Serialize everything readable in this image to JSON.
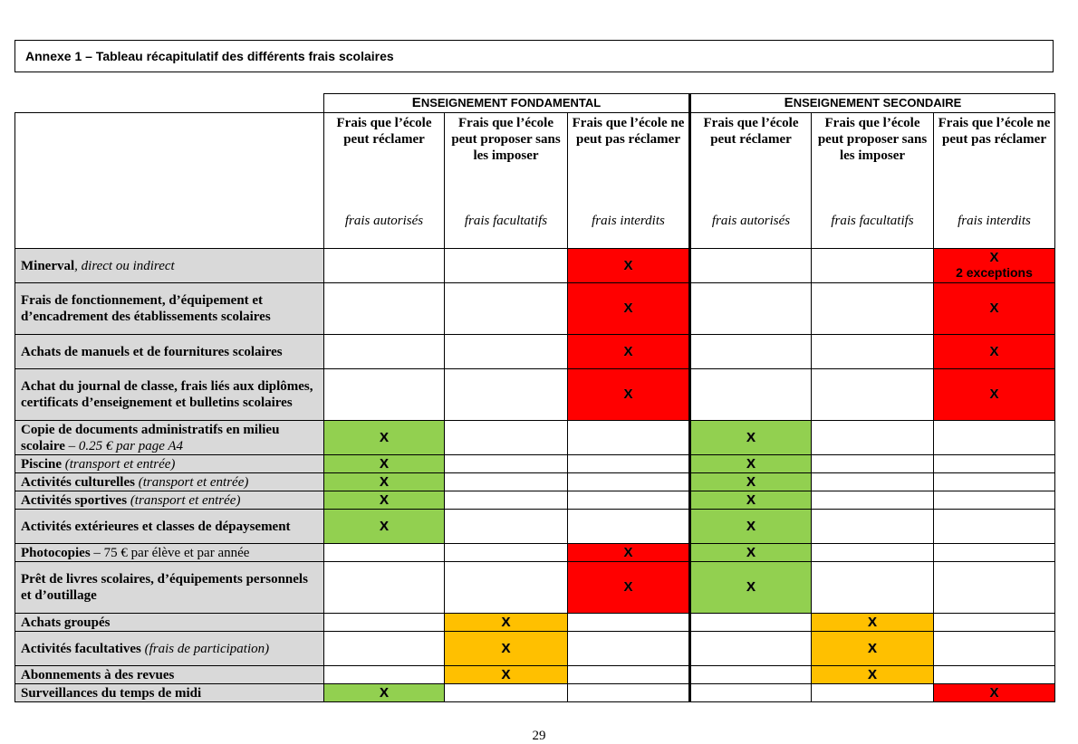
{
  "title": "Annexe 1 – Tableau récapitulatif des différents frais scolaires",
  "groups": {
    "fondamental": {
      "initial": "E",
      "rest": "NSEIGNEMENT FONDAMENTAL"
    },
    "secondaire": {
      "initial": "E",
      "rest": "NSEIGNEMENT SECONDAIRE"
    }
  },
  "column_headers": [
    {
      "heading": "Frais que l’école peut réclamer",
      "subtitle": "frais autorisés"
    },
    {
      "heading": "Frais que l’école peut proposer sans les imposer",
      "subtitle": "frais facultatifs"
    },
    {
      "heading": "Frais que l’école ne peut pas réclamer",
      "subtitle": "frais interdits"
    },
    {
      "heading": "Frais que l’école peut réclamer",
      "subtitle": "frais autorisés"
    },
    {
      "heading": "Frais que l’école peut proposer sans les imposer",
      "subtitle": "frais facultatifs"
    },
    {
      "heading": "Frais que l’école ne peut pas réclamer",
      "subtitle": "frais interdits"
    }
  ],
  "mark": "X",
  "exception_note": "2 exceptions",
  "status_colors": {
    "interdit": "#ff0000",
    "autorise": "#92d050",
    "facultatif": "#ffc000",
    "label_bg": "#d9d9d9"
  },
  "rows": [
    {
      "label_bold": "Minerval",
      "label_rest": ", direct ou indirect",
      "cells": [
        "",
        "",
        "red",
        "",
        "",
        "red"
      ]
    },
    {
      "label_bold": "Frais de fonctionnement, d’équipement et d’encadrement des établissements scolaires",
      "cells": [
        "",
        "",
        "red",
        "",
        "",
        "red"
      ]
    },
    {
      "label_bold": "Achats de manuels et de fournitures scolaires",
      "cells": [
        "",
        "",
        "red",
        "",
        "",
        "red"
      ]
    },
    {
      "label_bold": "Achat du journal de classe, frais liés aux diplômes, certificats d’enseignement et  bulletins scolaires",
      "cells": [
        "",
        "",
        "red",
        "",
        "",
        "red"
      ]
    },
    {
      "label_bold": "Copie de documents administratifs en milieu scolaire",
      "label_plain": " – ",
      "label_italic": "0.25 € par page A4",
      "cells": [
        "green",
        "",
        "",
        "green",
        "",
        ""
      ]
    },
    {
      "label_bold": "Piscine",
      "label_italic": " (transport et entrée)",
      "cells": [
        "green",
        "",
        "",
        "green",
        "",
        ""
      ]
    },
    {
      "label_bold": "Activités culturelles",
      "label_italic": " (transport et entrée)",
      "cells": [
        "green",
        "",
        "",
        "green",
        "",
        ""
      ]
    },
    {
      "label_bold": "Activités sportives",
      "label_italic": " (transport et entrée)",
      "cells": [
        "green",
        "",
        "",
        "green",
        "",
        ""
      ]
    },
    {
      "label_bold": "Activités extérieures et classes de dépaysement",
      "cells": [
        "green",
        "",
        "",
        "green",
        "",
        ""
      ]
    },
    {
      "label_bold": "Photocopies",
      "label_plain": " – 75 € par élève et par année",
      "cells": [
        "",
        "",
        "red",
        "green",
        "",
        ""
      ]
    },
    {
      "label_bold": "Prêt de livres scolaires, d’équipements personnels et d’outillage",
      "cells": [
        "",
        "",
        "red",
        "green",
        "",
        ""
      ]
    },
    {
      "label_bold": "Achats groupés",
      "cells": [
        "",
        "orange",
        "",
        "",
        "orange",
        ""
      ]
    },
    {
      "label_bold": "Activités facultatives",
      "label_italic": " (frais de participation)",
      "cells": [
        "",
        "orange",
        "",
        "",
        "orange",
        ""
      ]
    },
    {
      "label_bold": "Abonnements à des revues",
      "cells": [
        "",
        "orange",
        "",
        "",
        "orange",
        ""
      ]
    },
    {
      "label_bold": "Surveillances du temps de midi",
      "cells": [
        "green",
        "",
        "",
        "",
        "",
        "red"
      ]
    }
  ],
  "page_number": "29"
}
